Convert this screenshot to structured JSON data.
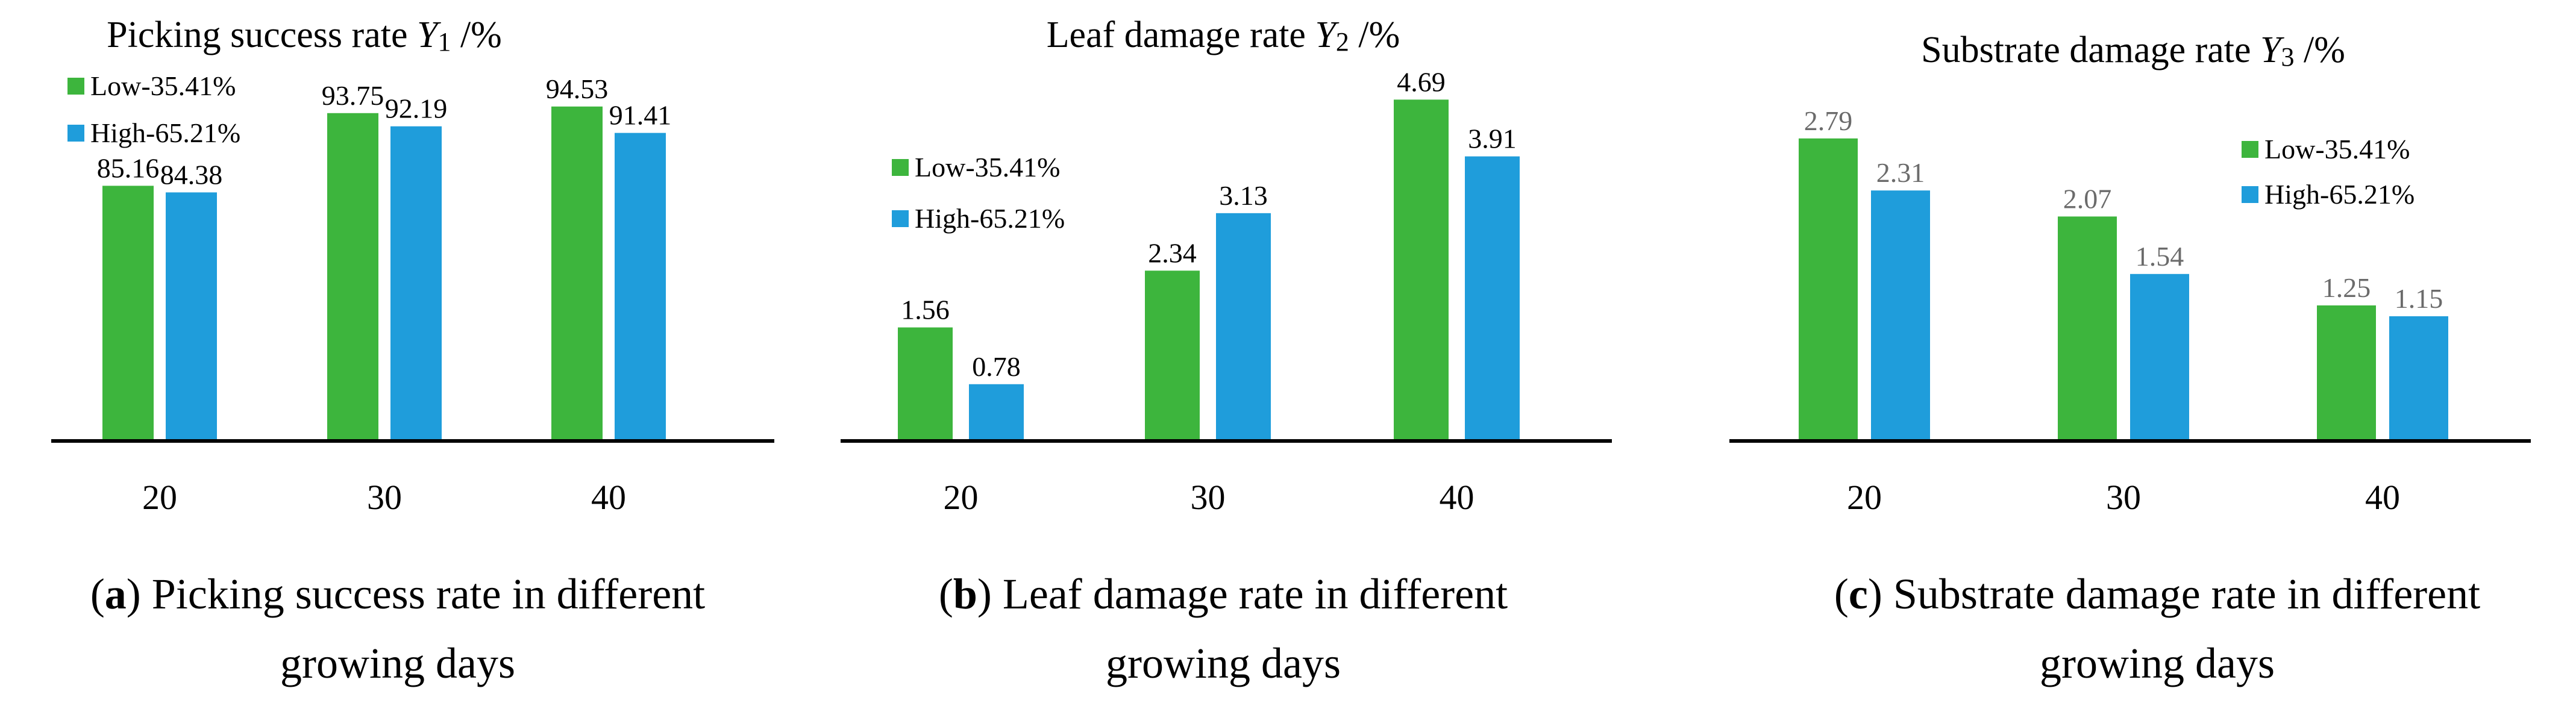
{
  "colors": {
    "low": "#3db53d",
    "high": "#1f9ddb",
    "axis": "#000000",
    "value_label_c": "#6b6b6b"
  },
  "chart_data": [
    {
      "type": "bar",
      "title_main": "Picking success rate ",
      "title_var": "Y",
      "title_sub": "1",
      "title_unit": " /%",
      "categories": [
        "20",
        "30",
        "40"
      ],
      "series": [
        {
          "name": "Low-35.41%",
          "values": [
            85.16,
            93.75,
            94.53
          ],
          "labels": [
            "85.16",
            "93.75",
            "94.53"
          ]
        },
        {
          "name": "High-65.21%",
          "values": [
            84.38,
            92.19,
            91.41
          ],
          "labels": [
            "84.38",
            "92.19",
            "91.41"
          ]
        }
      ],
      "ylim": [
        55,
        100
      ],
      "legend": "top-left",
      "caption_letter": "a",
      "caption_line1": " Picking success rate in different",
      "caption_line2": "growing days"
    },
    {
      "type": "bar",
      "title_main": "Leaf damage rate ",
      "title_var": "Y",
      "title_sub": "2",
      "title_unit": " /%",
      "categories": [
        "20",
        "30",
        "40"
      ],
      "series": [
        {
          "name": "Low-35.41%",
          "values": [
            1.56,
            2.34,
            4.69
          ],
          "labels": [
            "1.56",
            "2.34",
            "4.69"
          ]
        },
        {
          "name": "High-65.21%",
          "values": [
            0.78,
            3.13,
            3.91
          ],
          "labels": [
            "0.78",
            "3.13",
            "3.91"
          ]
        }
      ],
      "ylim": [
        0,
        4.9
      ],
      "legend": "left",
      "caption_letter": "b",
      "caption_line1": " Leaf damage rate in different",
      "caption_line2": "growing days"
    },
    {
      "type": "bar",
      "title_main": "Substrate damage rate ",
      "title_var": "Y",
      "title_sub": "3",
      "title_unit": " /%",
      "categories": [
        "20",
        "30",
        "40"
      ],
      "series": [
        {
          "name": "Low-35.41%",
          "values": [
            2.79,
            2.07,
            1.25
          ],
          "labels": [
            "2.79",
            "2.07",
            "1.25"
          ]
        },
        {
          "name": "High-65.21%",
          "values": [
            2.31,
            1.54,
            1.15
          ],
          "labels": [
            "2.31",
            "1.54",
            "1.15"
          ]
        }
      ],
      "ylim": [
        0,
        2.9
      ],
      "legend": "top-right",
      "caption_letter": "c",
      "caption_line1": " Substrate damage rate in different",
      "caption_line2": "growing days"
    }
  ]
}
